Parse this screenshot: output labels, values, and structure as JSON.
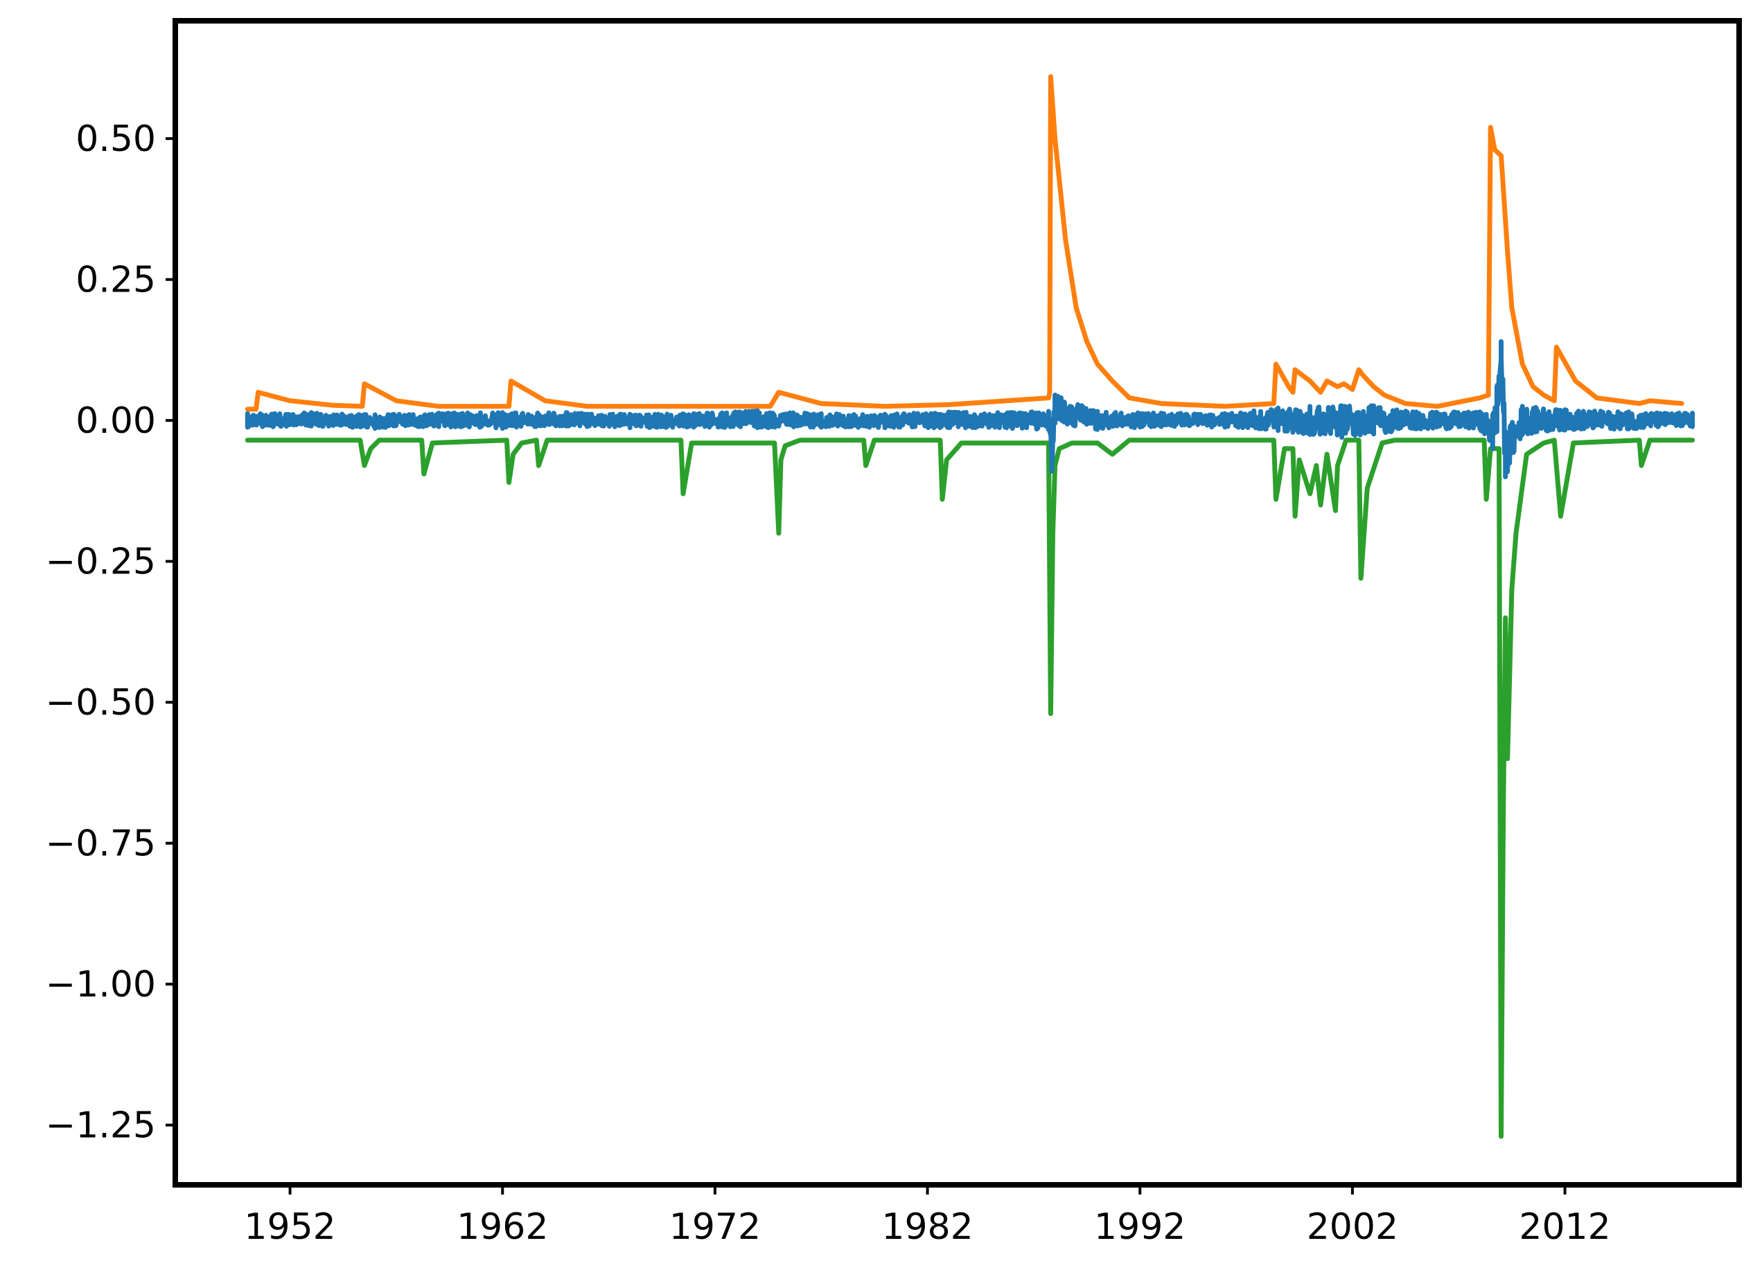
{
  "chart_data": {
    "type": "line",
    "title": "",
    "xlabel": "",
    "ylabel": "",
    "xlim": [
      1946.6,
      2020.2
    ],
    "ylim": [
      -1.356,
      0.709
    ],
    "grid": false,
    "legend": "none",
    "x_ticks": [
      {
        "value": 1952,
        "label": "1952"
      },
      {
        "value": 1962,
        "label": "1962"
      },
      {
        "value": 1972,
        "label": "1972"
      },
      {
        "value": 1982,
        "label": "1982"
      },
      {
        "value": 1992,
        "label": "1992"
      },
      {
        "value": 2002,
        "label": "2002"
      },
      {
        "value": 2012,
        "label": "2012"
      }
    ],
    "y_ticks": [
      {
        "value": 0.5,
        "label": "0.50"
      },
      {
        "value": 0.25,
        "label": "0.25"
      },
      {
        "value": 0.0,
        "label": "0.00"
      },
      {
        "value": -0.25,
        "label": "−0.25"
      },
      {
        "value": -0.5,
        "label": "−0.50"
      },
      {
        "value": -0.75,
        "label": "−0.75"
      },
      {
        "value": -1.0,
        "label": "−1.00"
      },
      {
        "value": -1.25,
        "label": "−1.25"
      }
    ],
    "series": [
      {
        "color": "#2ca02c",
        "x": [
          1950.0,
          1955.3,
          1955.5,
          1955.8,
          1956.2,
          1958.2,
          1958.3,
          1958.7,
          1962.2,
          1962.3,
          1962.5,
          1962.9,
          1963.6,
          1963.7,
          1964.1,
          1970.4,
          1970.5,
          1970.9,
          1974.8,
          1975.0,
          1975.1,
          1975.3,
          1976.0,
          1979.0,
          1979.1,
          1979.5,
          1982.6,
          1982.7,
          1982.9,
          1983.6,
          1987.7,
          1987.8,
          1987.9,
          1988.0,
          1988.2,
          1988.8,
          1990.0,
          1990.7,
          1991.5,
          1998.3,
          1998.4,
          1998.8,
          1999.2,
          1999.3,
          1999.5,
          2000.0,
          2000.3,
          2000.5,
          2000.8,
          2001.2,
          2001.3,
          2001.7,
          2002.3,
          2002.4,
          2002.7,
          2003.4,
          2004.0,
          2008.2,
          2008.3,
          2008.5,
          2008.9,
          2009.0,
          2009.1,
          2009.2,
          2009.3,
          2009.5,
          2009.7,
          2010.2,
          2011.0,
          2011.5,
          2011.8,
          2012.4,
          2015.5,
          2015.6,
          2016.0,
          2018.0
        ],
        "y": [
          -0.035,
          -0.035,
          -0.08,
          -0.05,
          -0.035,
          -0.035,
          -0.095,
          -0.04,
          -0.035,
          -0.11,
          -0.06,
          -0.04,
          -0.035,
          -0.08,
          -0.035,
          -0.035,
          -0.13,
          -0.04,
          -0.04,
          -0.2,
          -0.07,
          -0.045,
          -0.035,
          -0.035,
          -0.08,
          -0.035,
          -0.035,
          -0.14,
          -0.07,
          -0.04,
          -0.04,
          -0.52,
          -0.2,
          -0.08,
          -0.05,
          -0.04,
          -0.04,
          -0.06,
          -0.035,
          -0.035,
          -0.14,
          -0.05,
          -0.05,
          -0.17,
          -0.07,
          -0.13,
          -0.08,
          -0.15,
          -0.06,
          -0.16,
          -0.08,
          -0.035,
          -0.035,
          -0.28,
          -0.12,
          -0.04,
          -0.035,
          -0.035,
          -0.14,
          -0.05,
          -0.05,
          -1.27,
          -0.7,
          -0.35,
          -0.6,
          -0.3,
          -0.2,
          -0.06,
          -0.04,
          -0.035,
          -0.17,
          -0.04,
          -0.035,
          -0.08,
          -0.035,
          -0.035
        ]
      },
      {
        "color": "#ff7f0e",
        "x": [
          1950.0,
          1950.4,
          1950.5,
          1952.0,
          1954.0,
          1955.4,
          1955.5,
          1957.0,
          1959.0,
          1962.3,
          1962.4,
          1964.0,
          1966.0,
          1974.6,
          1975.0,
          1977.0,
          1980.0,
          1983.0,
          1987.7,
          1987.75,
          1987.8,
          1988.0,
          1988.5,
          1989.0,
          1989.5,
          1990.0,
          1990.7,
          1991.5,
          1993.0,
          1996.0,
          1998.3,
          1998.4,
          1999.0,
          1999.2,
          1999.3,
          2000.0,
          2000.5,
          2000.8,
          2001.3,
          2001.6,
          2002.0,
          2002.3,
          2002.5,
          2003.0,
          2003.5,
          2004.5,
          2006.0,
          2008.0,
          2008.4,
          2008.5,
          2008.7,
          2009.0,
          2009.3,
          2009.5,
          2010.0,
          2010.5,
          2011.0,
          2011.5,
          2011.6,
          2012.5,
          2013.5,
          2015.5,
          2016.0,
          2017.5
        ],
        "y": [
          0.02,
          0.02,
          0.05,
          0.035,
          0.027,
          0.025,
          0.065,
          0.035,
          0.025,
          0.025,
          0.07,
          0.035,
          0.025,
          0.025,
          0.05,
          0.03,
          0.025,
          0.028,
          0.04,
          0.05,
          0.61,
          0.5,
          0.32,
          0.2,
          0.14,
          0.1,
          0.07,
          0.04,
          0.03,
          0.025,
          0.03,
          0.1,
          0.06,
          0.05,
          0.09,
          0.07,
          0.05,
          0.07,
          0.06,
          0.065,
          0.055,
          0.09,
          0.08,
          0.06,
          0.045,
          0.03,
          0.025,
          0.04,
          0.045,
          0.52,
          0.48,
          0.47,
          0.3,
          0.2,
          0.1,
          0.06,
          0.045,
          0.035,
          0.13,
          0.07,
          0.04,
          0.03,
          0.035,
          0.03
        ]
      },
      {
        "color": "#1f77b4",
        "x": [
          1950.0,
          1953.0,
          1956.0,
          1959.0,
          1962.0,
          1965.0,
          1968.0,
          1971.0,
          1974.0,
          1977.0,
          1980.0,
          1983.0,
          1986.0,
          1987.7,
          1987.85,
          1988.0,
          1990.0,
          1993.0,
          1996.0,
          1998.5,
          2000.0,
          2001.5,
          2003.0,
          2005.0,
          2008.0,
          2008.6,
          2008.8,
          2009.0,
          2009.2,
          2010.0,
          2012.0,
          2015.0,
          2018.0
        ],
        "y": [
          0.0,
          0.002,
          -0.002,
          0.001,
          0.0,
          0.002,
          -0.001,
          0.0,
          0.002,
          0.0,
          -0.001,
          0.001,
          0.0,
          0.0,
          -0.06,
          0.02,
          0.0,
          0.001,
          0.0,
          0.002,
          0.0,
          -0.002,
          0.001,
          0.0,
          0.0,
          -0.02,
          0.02,
          0.11,
          -0.06,
          0.0,
          0.001,
          0.0,
          0.001
        ],
        "amplitude": [
          0.012,
          0.012,
          0.012,
          0.012,
          0.014,
          0.012,
          0.012,
          0.012,
          0.015,
          0.012,
          0.012,
          0.014,
          0.014,
          0.016,
          0.03,
          0.025,
          0.016,
          0.012,
          0.012,
          0.02,
          0.025,
          0.028,
          0.025,
          0.015,
          0.015,
          0.03,
          0.04,
          0.03,
          0.04,
          0.025,
          0.018,
          0.015,
          0.012
        ]
      }
    ]
  }
}
